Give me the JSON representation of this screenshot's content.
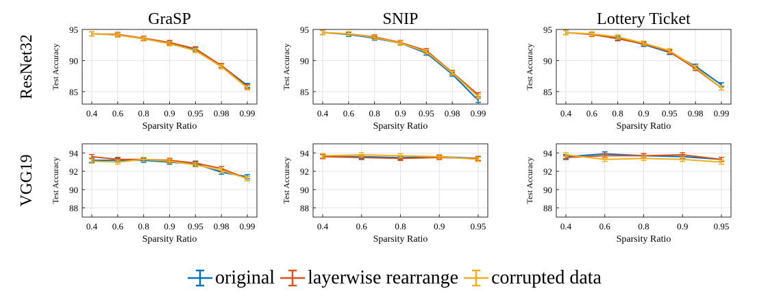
{
  "colors": {
    "original": "#0072BD",
    "layerwise": "#D95319",
    "corrupted": "#EDB120"
  },
  "column_titles": [
    "GraSP",
    "SNIP",
    "Lottery Ticket"
  ],
  "row_labels": [
    "ResNet32",
    "VGG19"
  ],
  "legend": [
    "original",
    "layerwise rearrange",
    "corrupted data"
  ],
  "chart_data": [
    {
      "type": "line",
      "title": "GraSP",
      "xlabel": "Sparsity Ratio",
      "ylabel": "Test Accuracy",
      "x_ticks": [
        0.4,
        0.6,
        0.8,
        0.9,
        0.95,
        0.98,
        0.99
      ],
      "y_ticks": [
        85,
        90,
        95
      ],
      "ylim": [
        83,
        95
      ],
      "grid": true,
      "series": [
        {
          "name": "original",
          "values": [
            94.3,
            94.1,
            93.5,
            92.8,
            91.8,
            89.2,
            86.0
          ]
        },
        {
          "name": "layerwise rearrange",
          "values": [
            94.3,
            94.2,
            93.6,
            92.9,
            91.9,
            89.2,
            85.8
          ]
        },
        {
          "name": "corrupted data",
          "values": [
            94.3,
            94.1,
            93.5,
            92.7,
            91.6,
            89.0,
            85.6
          ]
        }
      ]
    },
    {
      "type": "line",
      "title": "SNIP",
      "xlabel": "Sparsity Ratio",
      "ylabel": "Test Accuracy",
      "x_ticks": [
        0.4,
        0.6,
        0.8,
        0.9,
        0.95,
        0.98,
        0.99
      ],
      "y_ticks": [
        85,
        90,
        95
      ],
      "ylim": [
        83,
        95
      ],
      "grid": true,
      "series": [
        {
          "name": "original",
          "values": [
            94.5,
            94.2,
            93.6,
            92.8,
            91.2,
            87.8,
            83.6
          ]
        },
        {
          "name": "layerwise rearrange",
          "values": [
            94.5,
            94.3,
            93.8,
            92.9,
            91.6,
            88.1,
            84.5
          ]
        },
        {
          "name": "corrupted data",
          "values": [
            94.5,
            94.3,
            93.7,
            92.8,
            91.4,
            88.0,
            84.2
          ]
        }
      ]
    },
    {
      "type": "line",
      "title": "Lottery Ticket",
      "xlabel": "Sparsity Ratio",
      "ylabel": "Test Accuracy",
      "x_ticks": [
        0.4,
        0.6,
        0.8,
        0.9,
        0.95,
        0.98,
        0.99
      ],
      "y_ticks": [
        85,
        90,
        95
      ],
      "ylim": [
        83,
        95
      ],
      "grid": true,
      "series": [
        {
          "name": "original",
          "values": [
            94.5,
            94.2,
            93.6,
            92.6,
            91.3,
            89.1,
            86.1
          ]
        },
        {
          "name": "layerwise rearrange",
          "values": [
            94.5,
            94.2,
            93.5,
            92.7,
            91.4,
            88.7,
            85.6
          ]
        },
        {
          "name": "corrupted data",
          "values": [
            94.5,
            94.3,
            93.8,
            92.8,
            91.6,
            88.9,
            85.6
          ]
        }
      ]
    },
    {
      "type": "line",
      "title": "",
      "xlabel": "Sparsity Ratio",
      "ylabel": "Test Accuracy",
      "x_ticks": [
        0.4,
        0.6,
        0.8,
        0.9,
        0.95,
        0.98,
        0.99
      ],
      "y_ticks": [
        88,
        90,
        92,
        94
      ],
      "ylim": [
        87,
        95
      ],
      "grid": true,
      "series": [
        {
          "name": "original",
          "values": [
            93.2,
            93.2,
            93.2,
            93.0,
            92.8,
            91.9,
            91.4
          ]
        },
        {
          "name": "layerwise rearrange",
          "values": [
            93.6,
            93.3,
            93.3,
            93.2,
            92.9,
            92.3,
            91.2
          ]
        },
        {
          "name": "corrupted data",
          "values": [
            93.1,
            93.0,
            93.3,
            93.1,
            92.7,
            92.1,
            91.2
          ]
        }
      ]
    },
    {
      "type": "line",
      "title": "",
      "xlabel": "Sparsity Ratio",
      "ylabel": "Test Accuracy",
      "x_ticks": [
        0.4,
        0.6,
        0.8,
        0.9,
        0.95
      ],
      "y_ticks": [
        88,
        90,
        92,
        94
      ],
      "ylim": [
        87,
        95
      ],
      "grid": true,
      "series": [
        {
          "name": "original",
          "values": [
            93.6,
            93.6,
            93.5,
            93.6,
            93.4
          ]
        },
        {
          "name": "layerwise rearrange",
          "values": [
            93.6,
            93.5,
            93.4,
            93.5,
            93.4
          ]
        },
        {
          "name": "corrupted data",
          "values": [
            93.7,
            93.8,
            93.7,
            93.6,
            93.3
          ]
        }
      ]
    },
    {
      "type": "line",
      "title": "",
      "xlabel": "Sparsity Ratio",
      "ylabel": "Test Accuracy",
      "x_ticks": [
        0.4,
        0.6,
        0.8,
        0.9,
        0.95
      ],
      "y_ticks": [
        88,
        90,
        92,
        94
      ],
      "ylim": [
        87,
        95
      ],
      "grid": true,
      "series": [
        {
          "name": "original",
          "values": [
            93.6,
            93.9,
            93.7,
            93.6,
            93.3
          ]
        },
        {
          "name": "layerwise rearrange",
          "values": [
            93.5,
            93.7,
            93.7,
            93.8,
            93.3
          ]
        },
        {
          "name": "corrupted data",
          "values": [
            93.8,
            93.3,
            93.4,
            93.3,
            93.0
          ]
        }
      ]
    }
  ]
}
